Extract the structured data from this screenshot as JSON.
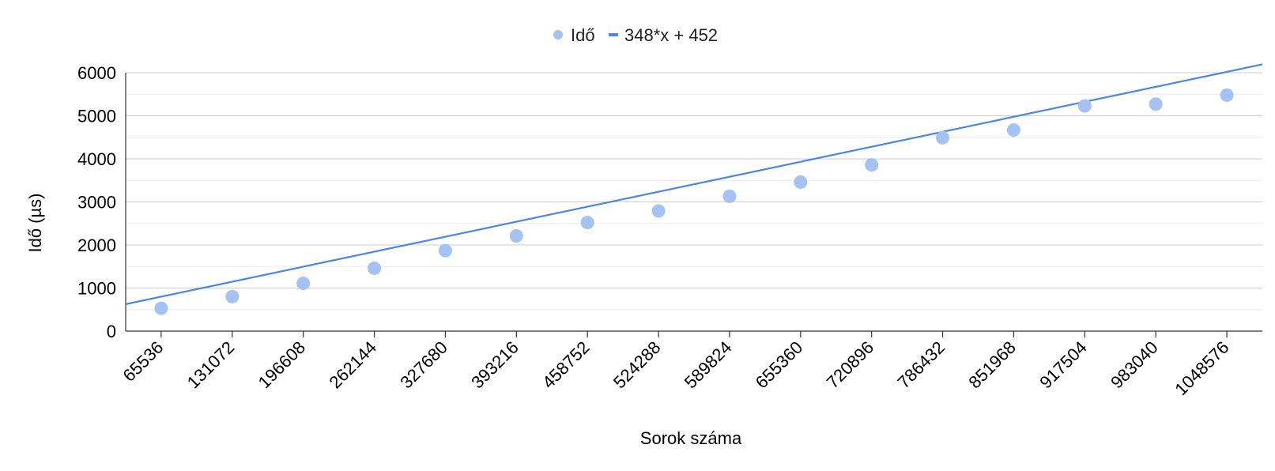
{
  "chart_data": {
    "type": "scatter",
    "title": "",
    "xlabel": "Sorok száma",
    "ylabel": "Idő (µs)",
    "categories": [
      "65536",
      "131072",
      "196608",
      "262144",
      "327680",
      "393216",
      "458752",
      "524288",
      "589824",
      "655360",
      "720896",
      "786432",
      "851968",
      "917504",
      "983040",
      "1048576"
    ],
    "series": [
      {
        "name": "Idő",
        "kind": "points",
        "color": "#a4c2f4",
        "values": [
          530,
          800,
          1110,
          1460,
          1870,
          2210,
          2520,
          2790,
          3130,
          3460,
          3860,
          4490,
          4670,
          5230,
          5270,
          5480
        ]
      },
      {
        "name": "348*x + 452",
        "kind": "trendline",
        "color": "#4a86e8",
        "slope": 348,
        "intercept": 452
      }
    ],
    "ylim": [
      0,
      6000
    ],
    "yticks": [
      0,
      1000,
      2000,
      3000,
      4000,
      5000,
      6000
    ],
    "grid": true,
    "legend": "top-center"
  }
}
